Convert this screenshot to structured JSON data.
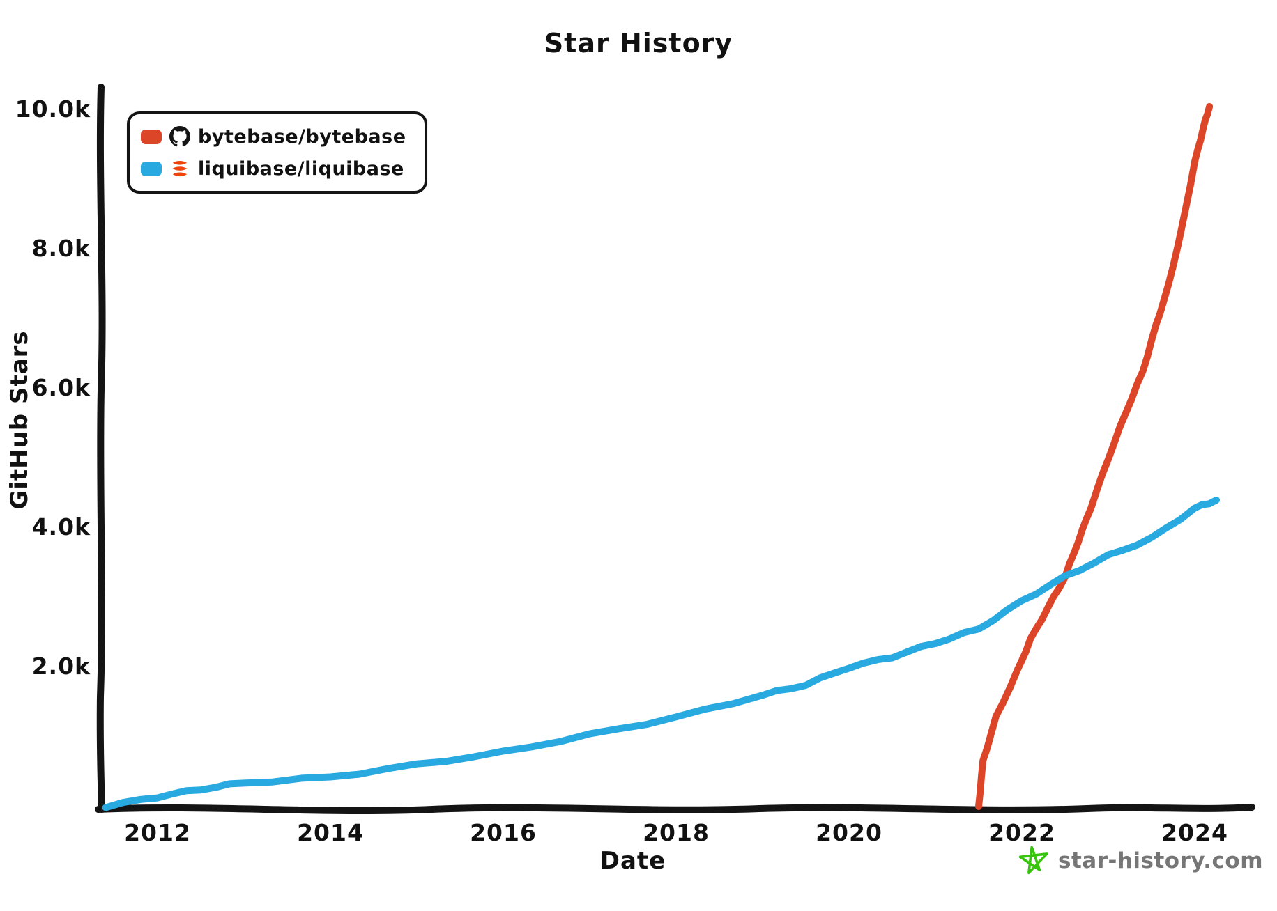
{
  "title": "Star History",
  "y_axis": {
    "label": "GitHub Stars",
    "ticks": [
      {
        "label": "10.0k",
        "value": 10000
      },
      {
        "label": "8.0k",
        "value": 8000
      },
      {
        "label": "6.0k",
        "value": 6000
      },
      {
        "label": "4.0k",
        "value": 4000
      },
      {
        "label": "2.0k",
        "value": 2000
      }
    ]
  },
  "x_axis": {
    "label": "Date",
    "ticks": [
      {
        "label": "2012",
        "value": 2012
      },
      {
        "label": "2014",
        "value": 2014
      },
      {
        "label": "2016",
        "value": 2016
      },
      {
        "label": "2018",
        "value": 2018
      },
      {
        "label": "2020",
        "value": 2020
      },
      {
        "label": "2022",
        "value": 2022
      },
      {
        "label": "2024",
        "value": 2024
      }
    ]
  },
  "legend": [
    {
      "name": "bytebase/bytebase",
      "color": "#dd4528",
      "icon": "github-octocat-icon"
    },
    {
      "name": "liquibase/liquibase",
      "color": "#28a9e0",
      "icon": "liquibase-icon"
    }
  ],
  "watermark": {
    "text": "star-history.com",
    "star_color": "#38c40e",
    "text_color": "#767676"
  },
  "colors": {
    "axis": "#141414",
    "bytebase": "#dd4528",
    "liquibase": "#28a9e0",
    "liquibase_logo": "#f0440c"
  },
  "chart_data": {
    "type": "line",
    "title": "Star History",
    "xlabel": "Date",
    "ylabel": "GitHub Stars",
    "x_range": [
      2011.35,
      2024.6
    ],
    "y_range": [
      0,
      10000
    ],
    "grid": false,
    "legend_position": "top-left",
    "series": [
      {
        "name": "bytebase/bytebase",
        "color": "#dd4528",
        "points": [
          [
            2021.5,
            0
          ],
          [
            2021.55,
            650
          ],
          [
            2021.7,
            1280
          ],
          [
            2021.95,
            1950
          ],
          [
            2022.1,
            2400
          ],
          [
            2022.3,
            2850
          ],
          [
            2022.5,
            3300
          ],
          [
            2022.65,
            3800
          ],
          [
            2022.8,
            4300
          ],
          [
            2023.0,
            5000
          ],
          [
            2023.2,
            5650
          ],
          [
            2023.4,
            6250
          ],
          [
            2023.55,
            6900
          ],
          [
            2023.7,
            7500
          ],
          [
            2023.85,
            8300
          ],
          [
            2024.0,
            9250
          ],
          [
            2024.1,
            9750
          ],
          [
            2024.17,
            10050
          ]
        ]
      },
      {
        "name": "liquibase/liquibase",
        "color": "#28a9e0",
        "points": [
          [
            2011.4,
            0
          ],
          [
            2012.0,
            140
          ],
          [
            2012.5,
            250
          ],
          [
            2013.0,
            340
          ],
          [
            2014.0,
            420
          ],
          [
            2015.0,
            600
          ],
          [
            2016.0,
            780
          ],
          [
            2017.0,
            1030
          ],
          [
            2018.0,
            1280
          ],
          [
            2019.0,
            1600
          ],
          [
            2019.5,
            1750
          ],
          [
            2020.0,
            2000
          ],
          [
            2020.5,
            2150
          ],
          [
            2021.0,
            2350
          ],
          [
            2021.5,
            2550
          ],
          [
            2022.0,
            2950
          ],
          [
            2022.5,
            3300
          ],
          [
            2023.0,
            3600
          ],
          [
            2023.5,
            3850
          ],
          [
            2024.0,
            4280
          ],
          [
            2024.25,
            4400
          ]
        ]
      }
    ]
  }
}
